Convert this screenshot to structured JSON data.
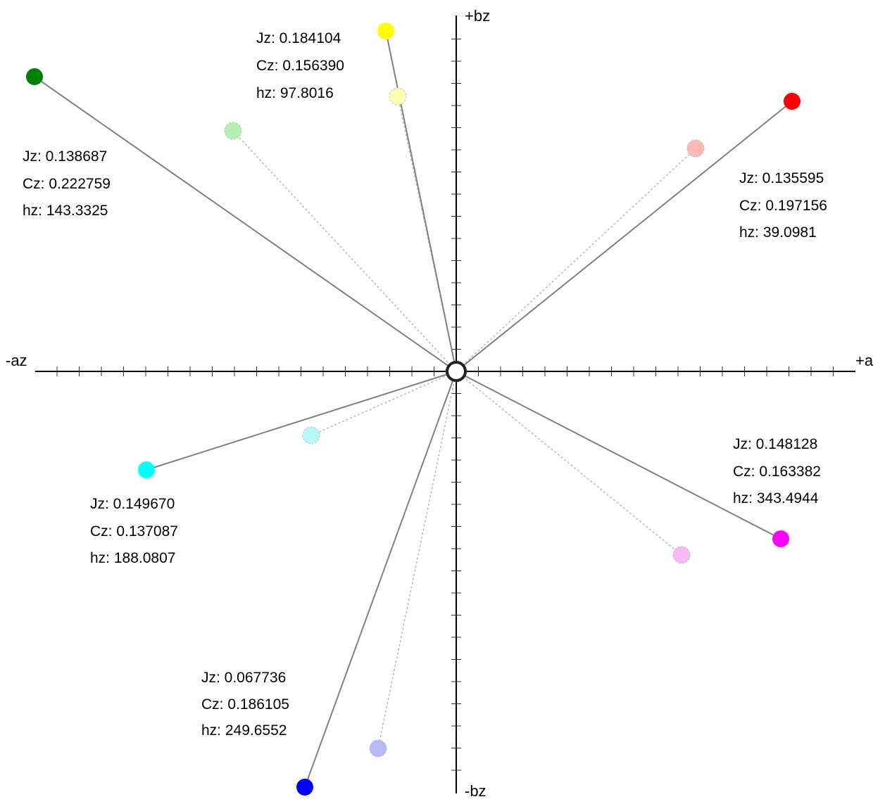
{
  "axes": {
    "pos_a": "+a",
    "neg_a": "-az",
    "pos_b": "+bz",
    "neg_b": "-bz"
  },
  "colors": [
    {
      "id": "red",
      "hex": "#ff0000",
      "ghost_hex": "#ffb8b8",
      "Jz": "Jz: 0.135595",
      "Cz": "Cz: 0.197156",
      "hz": "hz: 39.0981"
    },
    {
      "id": "yellow",
      "hex": "#ffff00",
      "ghost_hex": "#ffffb3",
      "Jz": "Jz: 0.184104",
      "Cz": "Cz: 0.156390",
      "hz": "hz: 97.8016"
    },
    {
      "id": "green",
      "hex": "#008000",
      "ghost_hex": "#b3f0b3",
      "Jz": "Jz: 0.138687",
      "Cz": "Cz: 0.222759",
      "hz": "hz: 143.3325"
    },
    {
      "id": "cyan",
      "hex": "#00ffff",
      "ghost_hex": "#b8f8f8",
      "Jz": "Jz: 0.149670",
      "Cz": "Cz: 0.137087",
      "hz": "hz: 188.0807"
    },
    {
      "id": "blue",
      "hex": "#0000ff",
      "ghost_hex": "#b8b8f8",
      "Jz": "Jz: 0.067736",
      "Cz": "Cz: 0.186105",
      "hz": "hz: 249.6552"
    },
    {
      "id": "magenta",
      "hex": "#ff00ff",
      "ghost_hex": "#f8b8f8",
      "Jz": "Jz: 0.148128",
      "Cz": "Cz: 0.163382",
      "hz": "hz: 343.4944"
    }
  ]
}
